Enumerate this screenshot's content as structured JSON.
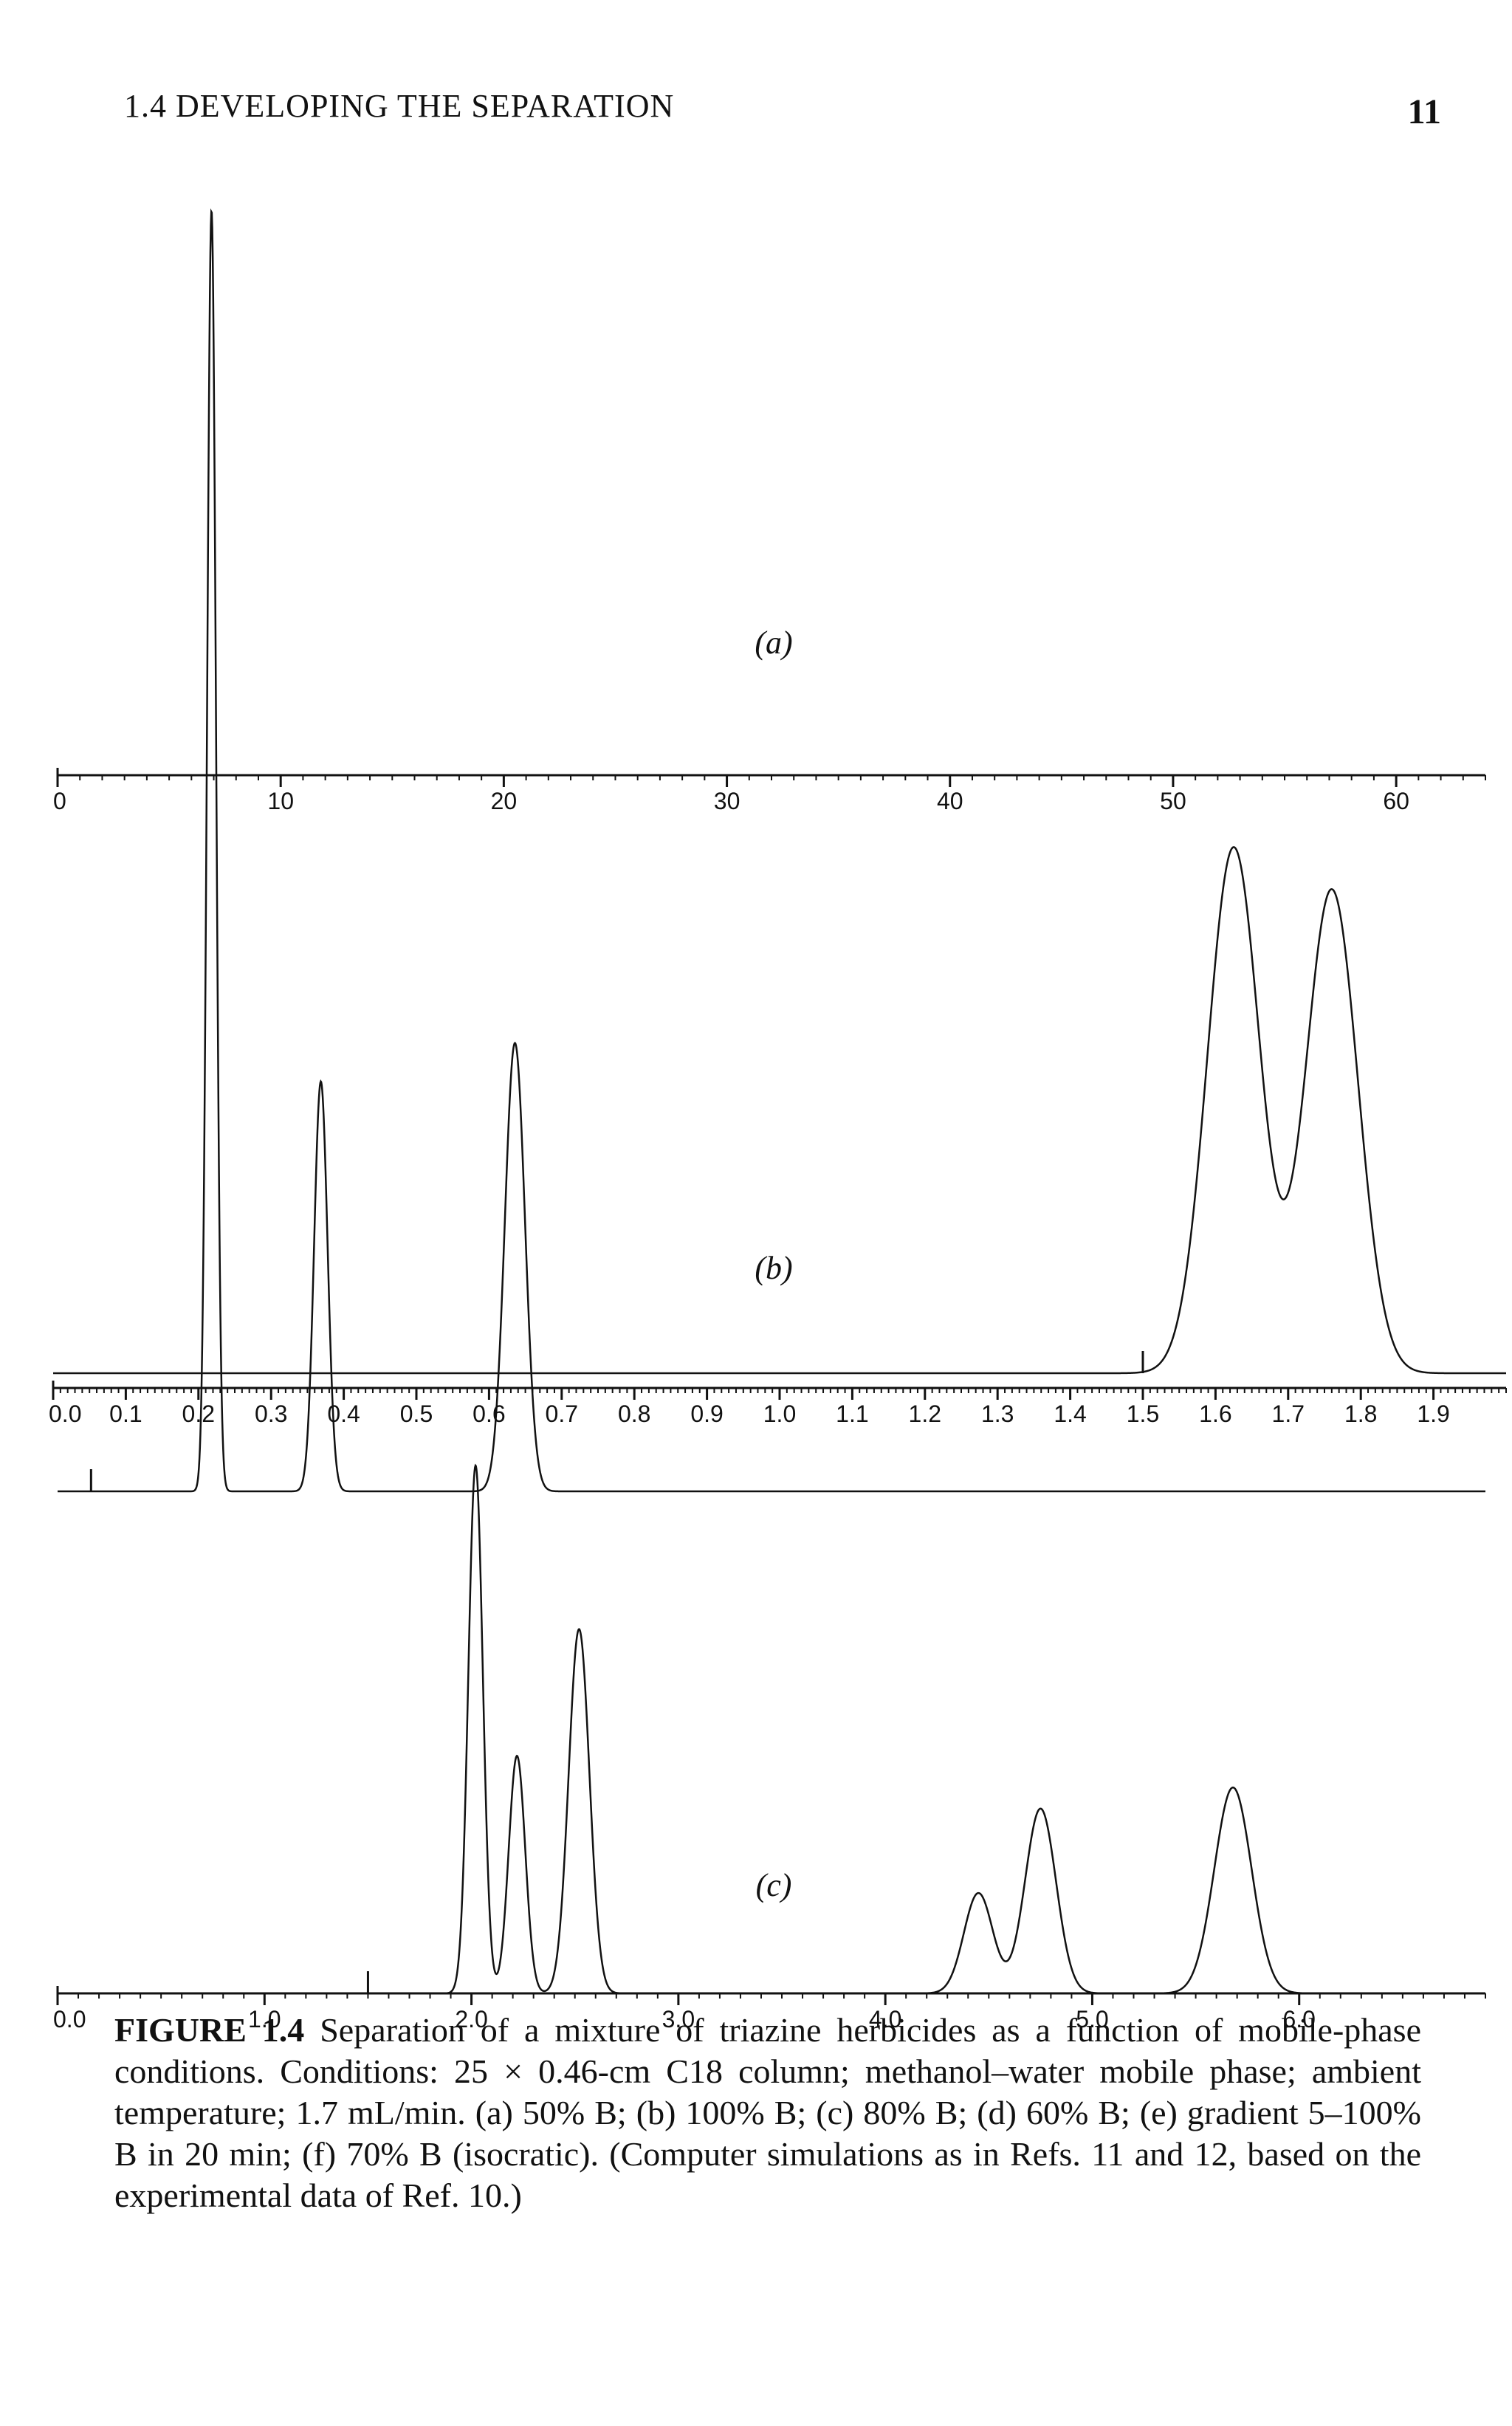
{
  "page": {
    "running_head": "1.4 DEVELOPING THE SEPARATION",
    "page_number": "11"
  },
  "chart_data": [
    {
      "type": "line",
      "panel_label": "(a)",
      "xlim": [
        0,
        64
      ],
      "ylim": [
        0,
        1
      ],
      "x_ticks": [
        0,
        10,
        20,
        30,
        40,
        50,
        60
      ],
      "x_tick_labels": [
        "0",
        "10",
        "20",
        "30",
        "40",
        "50",
        "60"
      ],
      "injection_marker_x": 1.5,
      "peaks": [
        {
          "rt": 6.9,
          "height": 1.0,
          "sigma": 0.2
        },
        {
          "rt": 11.8,
          "height": 0.32,
          "sigma": 0.3
        },
        {
          "rt": 20.5,
          "height": 0.35,
          "sigma": 0.45
        }
      ]
    },
    {
      "type": "line",
      "panel_label": "(b)",
      "xlim": [
        0,
        2.0
      ],
      "ylim": [
        0,
        1
      ],
      "x_ticks": [
        0.0,
        0.1,
        0.2,
        0.3,
        0.4,
        0.5,
        0.6,
        0.7,
        0.8,
        0.9,
        1.0,
        1.1,
        1.2,
        1.3,
        1.4,
        1.5,
        1.6,
        1.7,
        1.8,
        1.9
      ],
      "x_tick_labels": [
        "0.0",
        "0.1",
        "0.2",
        "0.3",
        "0.4",
        "0.5",
        "0.6",
        "0.7",
        "0.8",
        "0.9",
        "1.0",
        "1.1",
        "1.2",
        "1.3",
        "1.4",
        "1.5",
        "1.6",
        "1.7",
        "1.8",
        "1.9"
      ],
      "injection_marker_x": 1.5,
      "peaks": [
        {
          "rt": 1.625,
          "height": 1.0,
          "sigma": 0.036
        },
        {
          "rt": 1.76,
          "height": 0.92,
          "sigma": 0.036
        }
      ]
    },
    {
      "type": "line",
      "panel_label": "(c)",
      "xlim": [
        0,
        6.9
      ],
      "ylim": [
        0,
        1
      ],
      "x_ticks": [
        0.0,
        1.0,
        2.0,
        3.0,
        4.0,
        5.0,
        6.0
      ],
      "minor_tick_step": 0.1,
      "x_tick_labels": [
        "0.0",
        "1.0",
        "2.0",
        "3.0",
        "4.0",
        "5.0",
        "6.0"
      ],
      "injection_marker_x": 1.5,
      "peaks": [
        {
          "rt": 2.02,
          "height": 1.0,
          "sigma": 0.035
        },
        {
          "rt": 2.22,
          "height": 0.45,
          "sigma": 0.04
        },
        {
          "rt": 2.52,
          "height": 0.69,
          "sigma": 0.05
        },
        {
          "rt": 4.45,
          "height": 0.19,
          "sigma": 0.07
        },
        {
          "rt": 4.75,
          "height": 0.35,
          "sigma": 0.075
        },
        {
          "rt": 5.68,
          "height": 0.39,
          "sigma": 0.09
        }
      ]
    }
  ],
  "caption": {
    "label": "FIGURE 1.4",
    "text": "Separation of a mixture of triazine herbicides as a function of mobile-phase conditions. Conditions: 25 × 0.46-cm C18 column; methanol–water mobile phase; ambient temperature; 1.7 mL/min. (a) 50% B; (b) 100% B; (c) 80% B; (d) 60% B; (e) gradient 5–100% B in 20 min; (f) 70% B (isocratic). (Computer simulations as in Refs. 11 and 12, based on the experimental data of Ref. 10.)"
  }
}
